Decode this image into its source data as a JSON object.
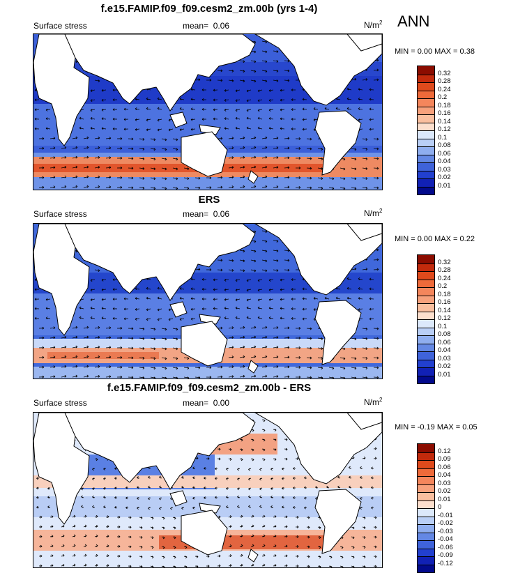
{
  "season": "ANN",
  "units": "N/m",
  "units_sup": "2",
  "panels": [
    {
      "title": "f.e15.FAMIP.f09_f09.cesm2_zm.00b (yrs 1-4)",
      "left_label": "Surface stress",
      "mean_label": "mean=",
      "mean_value": "0.06",
      "minmax": "MIN =   0.00 MAX =   0.38",
      "levels": [
        "0.32",
        "0.28",
        "0.24",
        "0.2",
        "0.18",
        "0.16",
        "0.14",
        "0.12",
        "0.1",
        "0.08",
        "0.06",
        "0.04",
        "0.03",
        "0.02",
        "0.01"
      ],
      "colors": [
        "#8b0c00",
        "#c22a0c",
        "#df4a1c",
        "#ee6a3a",
        "#f4865c",
        "#f7a17c",
        "#fabf9f",
        "#fcdfcd",
        "#dce9fb",
        "#b9cff6",
        "#8faeef",
        "#6488e4",
        "#3f63da",
        "#2240cf",
        "#1121b5",
        "#020a8c"
      ]
    },
    {
      "title": "ERS",
      "left_label": "Surface stress",
      "mean_label": "mean=",
      "mean_value": "0.06",
      "minmax": "MIN =   0.00 MAX =   0.22",
      "levels": [
        "0.32",
        "0.28",
        "0.24",
        "0.2",
        "0.18",
        "0.16",
        "0.14",
        "0.12",
        "0.1",
        "0.08",
        "0.06",
        "0.04",
        "0.03",
        "0.02",
        "0.01"
      ],
      "colors": [
        "#8b0c00",
        "#c22a0c",
        "#df4a1c",
        "#ee6a3a",
        "#f4865c",
        "#f7a17c",
        "#fabf9f",
        "#fcdfcd",
        "#dce9fb",
        "#b9cff6",
        "#8faeef",
        "#6488e4",
        "#3f63da",
        "#2240cf",
        "#1121b5",
        "#020a8c"
      ]
    },
    {
      "title": "f.e15.FAMIP.f09_f09.cesm2_zm.00b - ERS",
      "left_label": "Surface stress",
      "mean_label": "mean=",
      "mean_value": "0.00",
      "minmax": "MIN = -0.19 MAX =   0.05",
      "levels": [
        "0.12",
        "0.09",
        "0.06",
        "0.04",
        "0.03",
        "0.02",
        "0.01",
        "0",
        "-0.01",
        "-0.02",
        "-0.03",
        "-0.04",
        "-0.06",
        "-0.09",
        "-0.12"
      ],
      "colors": [
        "#8b0c00",
        "#c22a0c",
        "#df4a1c",
        "#ee6a3a",
        "#f4865c",
        "#f7a17c",
        "#fabf9f",
        "#fcdfcd",
        "#dce9fb",
        "#b9cff6",
        "#8faeef",
        "#6488e4",
        "#3f63da",
        "#2240cf",
        "#1121b5",
        "#020a8c"
      ]
    }
  ]
}
